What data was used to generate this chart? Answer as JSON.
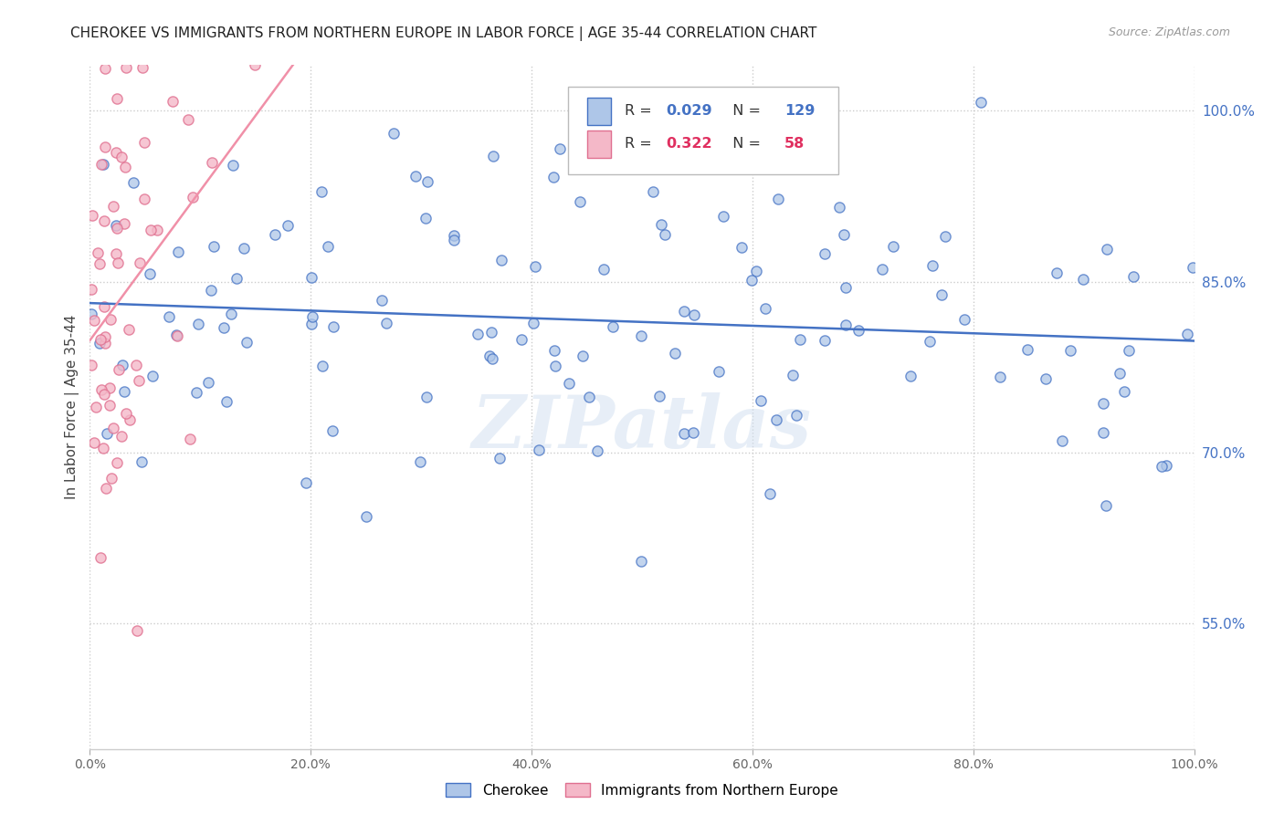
{
  "title": "CHEROKEE VS IMMIGRANTS FROM NORTHERN EUROPE IN LABOR FORCE | AGE 35-44 CORRELATION CHART",
  "source": "Source: ZipAtlas.com",
  "ylabel": "In Labor Force | Age 35-44",
  "legend_cherokee": "Cherokee",
  "legend_immigrants": "Immigrants from Northern Europe",
  "r_cherokee": "0.029",
  "n_cherokee": "129",
  "r_immigrants": "0.322",
  "n_immigrants": "58",
  "cherokee_color": "#aec6e8",
  "cherokee_edge": "#4472c4",
  "immigrant_color": "#f4b8c8",
  "immigrant_edge": "#e07090",
  "cherokee_line_color": "#4472c4",
  "immigrant_line_color": "#f090a8",
  "watermark": "ZIPatlas",
  "background_color": "#ffffff",
  "grid_color": "#cccccc",
  "title_color": "#222222",
  "ytick_color": "#4472c4",
  "xlim": [
    0.0,
    1.0
  ],
  "ylim": [
    0.44,
    1.04
  ]
}
